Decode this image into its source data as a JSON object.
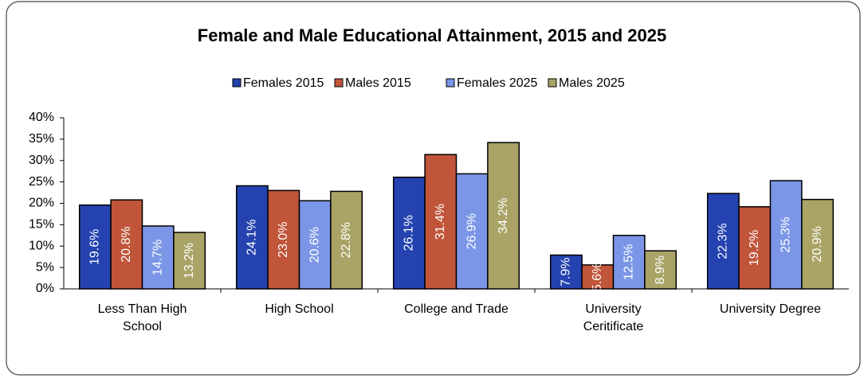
{
  "chart_data": {
    "type": "bar",
    "title": "Female and Male Educational Attainment, 2015 and 2025",
    "categories": [
      "Less Than High School",
      "High School",
      "College and Trade",
      "University Ceritificate",
      "University Degree"
    ],
    "series": [
      {
        "name": "Females 2015",
        "color": "#2443b0",
        "values": [
          19.6,
          24.1,
          26.1,
          7.9,
          22.3
        ],
        "value_labels": [
          "19.6%",
          "24.1%",
          "26.1%",
          "7.9%",
          "22.3%"
        ]
      },
      {
        "name": "Males 2015",
        "color": "#c0553a",
        "values": [
          20.8,
          23.0,
          31.4,
          5.6,
          19.2
        ],
        "value_labels": [
          "20.8%",
          "23.0%",
          "31.4%",
          "5.6%",
          "19.2%"
        ]
      },
      {
        "name": "Females 2025",
        "color": "#7b96e6",
        "values": [
          14.7,
          20.6,
          26.9,
          12.5,
          25.3
        ],
        "value_labels": [
          "14.7%",
          "20.6%",
          "26.9%",
          "12.5%",
          "25.3%"
        ]
      },
      {
        "name": "Males 2025",
        "color": "#a9a466",
        "values": [
          13.2,
          22.8,
          34.2,
          8.9,
          20.9
        ],
        "value_labels": [
          "13.2%",
          "22.8%",
          "34.2%",
          "8.9%",
          "20.9%"
        ]
      }
    ],
    "ylim": [
      0,
      40
    ],
    "yticks": [
      {
        "value": 0,
        "label": "0%"
      },
      {
        "value": 5,
        "label": "5%"
      },
      {
        "value": 10,
        "label": "10%"
      },
      {
        "value": 15,
        "label": "15%"
      },
      {
        "value": 20,
        "label": "20%"
      },
      {
        "value": 25,
        "label": "25%"
      },
      {
        "value": 30,
        "label": "30%"
      },
      {
        "value": 35,
        "label": "35%"
      },
      {
        "value": 40,
        "label": "40%"
      }
    ],
    "legend": "top"
  }
}
